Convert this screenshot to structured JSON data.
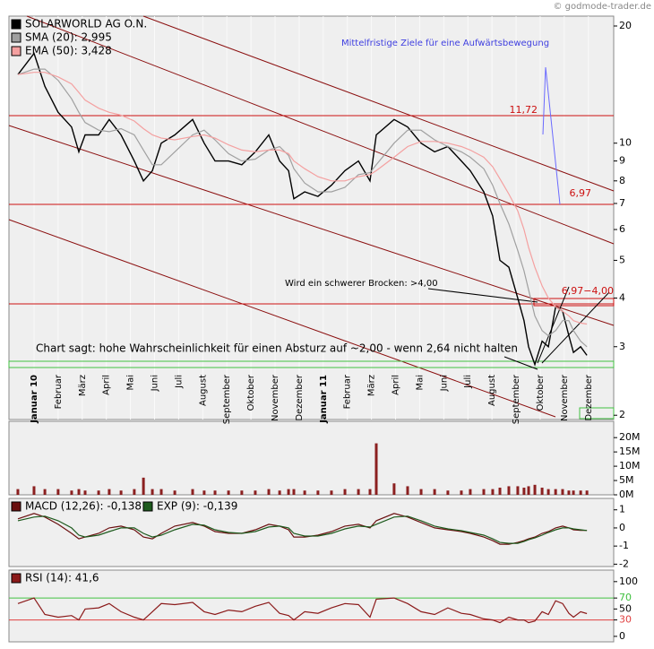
{
  "chart_data": [
    {
      "type": "line",
      "log": true,
      "xlim": [
        -1.04,
        24.05
      ],
      "ylim": [
        1.95,
        21.2
      ],
      "yticks": [
        2,
        3,
        4,
        5,
        6,
        7,
        8,
        9,
        10,
        20
      ],
      "xticks": [
        {
          "value": 0,
          "label": "Januar 10"
        },
        {
          "value": 1,
          "label": "Februar"
        },
        {
          "value": 2,
          "label": "März"
        },
        {
          "value": 3,
          "label": "April"
        },
        {
          "value": 4,
          "label": "Mai"
        },
        {
          "value": 5,
          "label": "Juni"
        },
        {
          "value": 6,
          "label": "Juli"
        },
        {
          "value": 7,
          "label": "August"
        },
        {
          "value": 8,
          "label": "September"
        },
        {
          "value": 9,
          "label": "Oktober"
        },
        {
          "value": 10,
          "label": "November"
        },
        {
          "value": 11,
          "label": "Dezember"
        },
        {
          "value": 12,
          "label": "Januar 11"
        },
        {
          "value": 13,
          "label": "Februar"
        },
        {
          "value": 14,
          "label": "März"
        },
        {
          "value": 15,
          "label": "April"
        },
        {
          "value": 16,
          "label": "Mai"
        },
        {
          "value": 17,
          "label": "Juni"
        },
        {
          "value": 18,
          "label": "Juli"
        },
        {
          "value": 19,
          "label": "August"
        },
        {
          "value": 20,
          "label": "September"
        },
        {
          "value": 21,
          "label": "Oktober"
        },
        {
          "value": 22,
          "label": "November"
        },
        {
          "value": 23,
          "label": "Dezember"
        }
      ],
      "x": [
        -0.67,
        0,
        0.45,
        1.0,
        1.56,
        1.86,
        2.12,
        2.68,
        3.12,
        3.61,
        4.16,
        4.54,
        4.91,
        5.28,
        5.84,
        6.58,
        7.06,
        7.51,
        8.07,
        8.62,
        9.18,
        9.74,
        10.19,
        10.56,
        10.78,
        11.23,
        11.78,
        12.34,
        12.9,
        13.46,
        13.94,
        14.2,
        14.94,
        15.5,
        16.06,
        16.62,
        17.17,
        17.73,
        18.1,
        18.66,
        19.03,
        19.33,
        19.7,
        20.07,
        20.33,
        20.52,
        20.78,
        21.08,
        21.34,
        21.64,
        21.93,
        22.19,
        22.38,
        22.68,
        22.94
      ],
      "series": [
        {
          "name": "SOLARWORLD AG O.N.",
          "color": "#000000",
          "values": [
            15,
            17,
            14,
            12,
            11,
            9.5,
            10.5,
            10.5,
            11.5,
            10.5,
            9,
            8,
            8.5,
            10,
            10.5,
            11.5,
            10,
            9,
            9,
            8.8,
            9.5,
            10.5,
            9,
            8.5,
            7.2,
            7.5,
            7.3,
            7.8,
            8.5,
            9,
            8,
            10.5,
            11.5,
            11,
            10,
            9.5,
            9.8,
            9,
            8.5,
            7.5,
            6.5,
            5,
            4.8,
            4,
            3.5,
            3,
            2.7,
            3.1,
            3,
            3.8,
            3.7,
            3.2,
            2.9,
            3,
            2.85
          ]
        },
        {
          "name": "SMA (20): 2,995",
          "color": "#a0a0a0",
          "values": [
            15,
            15.5,
            15.5,
            14.5,
            13,
            12,
            11.3,
            10.8,
            10.7,
            10.9,
            10.5,
            9.6,
            8.8,
            8.8,
            9.5,
            10.5,
            10.8,
            10.2,
            9.4,
            9.0,
            9.1,
            9.6,
            9.8,
            9.3,
            8.6,
            7.9,
            7.5,
            7.5,
            7.7,
            8.3,
            8.4,
            8.8,
            10.0,
            10.8,
            10.8,
            10.2,
            9.8,
            9.5,
            9.2,
            8.6,
            7.8,
            7.0,
            6.2,
            5.3,
            4.7,
            4.2,
            3.6,
            3.3,
            3.2,
            3.3,
            3.5,
            3.5,
            3.3,
            3.1,
            3.0
          ]
        },
        {
          "name": "EMA (50): 3,428",
          "color": "#f4a0a0",
          "values": [
            15,
            15.2,
            15.2,
            14.8,
            14.2,
            13.5,
            12.9,
            12.3,
            12.0,
            11.8,
            11.4,
            10.9,
            10.5,
            10.3,
            10.2,
            10.4,
            10.5,
            10.3,
            9.9,
            9.6,
            9.5,
            9.6,
            9.6,
            9.4,
            9.0,
            8.6,
            8.2,
            8.0,
            8.0,
            8.2,
            8.3,
            8.5,
            9.2,
            9.8,
            10.1,
            10.1,
            10.0,
            9.8,
            9.6,
            9.2,
            8.7,
            8.1,
            7.4,
            6.7,
            6.0,
            5.4,
            4.8,
            4.3,
            4.0,
            3.8,
            3.7,
            3.6,
            3.5,
            3.45,
            3.43
          ]
        }
      ],
      "annotations": [
        "Mittelfristige Ziele für eine Aufwärtsbewegung",
        "11,72",
        "6,97",
        "6,97−4,00",
        "Wird ein schwerer Brocken: >4,00",
        "Chart sagt: hohe Wahrscheinlichkeit für einen Absturz auf ~2,00 - wenn 2,64 nicht halten"
      ],
      "credit": "© godmode-trader.de"
    },
    {
      "type": "bar",
      "ylim": [
        0,
        25.7
      ],
      "yticks": [
        {
          "value": 0,
          "label": "0M"
        },
        {
          "value": 5,
          "label": "5M"
        },
        {
          "value": 10,
          "label": "10M"
        },
        {
          "value": 15,
          "label": "15M"
        },
        {
          "value": 20,
          "label": "20M"
        }
      ],
      "series": [
        {
          "color": "#8b2020",
          "values": [
            2,
            3,
            2,
            2,
            1.5,
            2,
            1.5,
            1.5,
            2,
            1.5,
            2,
            6,
            2,
            2,
            1.5,
            2,
            1.5,
            1.5,
            1.5,
            1.5,
            1.5,
            2,
            1.5,
            2,
            2,
            1.5,
            1.5,
            1.5,
            2,
            2,
            2,
            18,
            4,
            3,
            2,
            2,
            1.5,
            1.5,
            2,
            2,
            2,
            2.5,
            3,
            3,
            2.5,
            3,
            3.5,
            2.5,
            2,
            2,
            2,
            1.5,
            1.5,
            1.5,
            1.5
          ]
        }
      ]
    },
    {
      "type": "line",
      "ylim": [
        -2.13,
        1.63
      ],
      "yticks": [
        -2,
        -1,
        0,
        1
      ],
      "series": [
        {
          "name": "MACD (12,26): -0,138",
          "color": "#6b1010",
          "values": [
            0.5,
            0.8,
            0.6,
            0.2,
            -0.3,
            -0.6,
            -0.5,
            -0.3,
            0,
            0.1,
            -0.1,
            -0.5,
            -0.6,
            -0.3,
            0.1,
            0.3,
            0.1,
            -0.2,
            -0.3,
            -0.3,
            -0.1,
            0.2,
            0.1,
            -0.1,
            -0.5,
            -0.5,
            -0.4,
            -0.2,
            0.1,
            0.2,
            0,
            0.4,
            0.8,
            0.6,
            0.3,
            0,
            -0.1,
            -0.2,
            -0.3,
            -0.5,
            -0.7,
            -0.9,
            -0.9,
            -0.8,
            -0.7,
            -0.6,
            -0.5,
            -0.3,
            -0.2,
            0,
            0.1,
            0,
            -0.1,
            -0.13,
            -0.138
          ]
        },
        {
          "name": "EXP (9): -0,139",
          "color": "#1d5a1d",
          "values": [
            0.4,
            0.6,
            0.65,
            0.4,
            0,
            -0.4,
            -0.5,
            -0.4,
            -0.2,
            0,
            0,
            -0.3,
            -0.5,
            -0.4,
            -0.1,
            0.2,
            0.15,
            -0.1,
            -0.25,
            -0.3,
            -0.2,
            0.05,
            0.1,
            0,
            -0.3,
            -0.45,
            -0.45,
            -0.3,
            -0.05,
            0.1,
            0.05,
            0.2,
            0.6,
            0.65,
            0.4,
            0.1,
            -0.05,
            -0.15,
            -0.25,
            -0.4,
            -0.6,
            -0.8,
            -0.85,
            -0.85,
            -0.75,
            -0.65,
            -0.55,
            -0.4,
            -0.25,
            -0.1,
            0,
            0,
            -0.05,
            -0.1,
            -0.139
          ]
        }
      ]
    },
    {
      "type": "line",
      "ylim": [
        -10,
        121
      ],
      "yticks": [
        0,
        30,
        50,
        70,
        100
      ],
      "levels": [
        {
          "value": 30,
          "color": "#e04040"
        },
        {
          "value": 70,
          "color": "#40c040"
        }
      ],
      "series": [
        {
          "name": "RSI (14): 41,6",
          "color": "#8b1a1a",
          "values": [
            60,
            70,
            40,
            35,
            38,
            30,
            50,
            52,
            60,
            45,
            35,
            30,
            45,
            60,
            58,
            62,
            45,
            40,
            48,
            45,
            55,
            62,
            42,
            38,
            30,
            45,
            42,
            52,
            60,
            58,
            35,
            68,
            70,
            60,
            45,
            40,
            52,
            42,
            40,
            32,
            30,
            25,
            35,
            30,
            30,
            25,
            28,
            45,
            40,
            65,
            60,
            42,
            35,
            45,
            41.6
          ]
        }
      ]
    }
  ]
}
